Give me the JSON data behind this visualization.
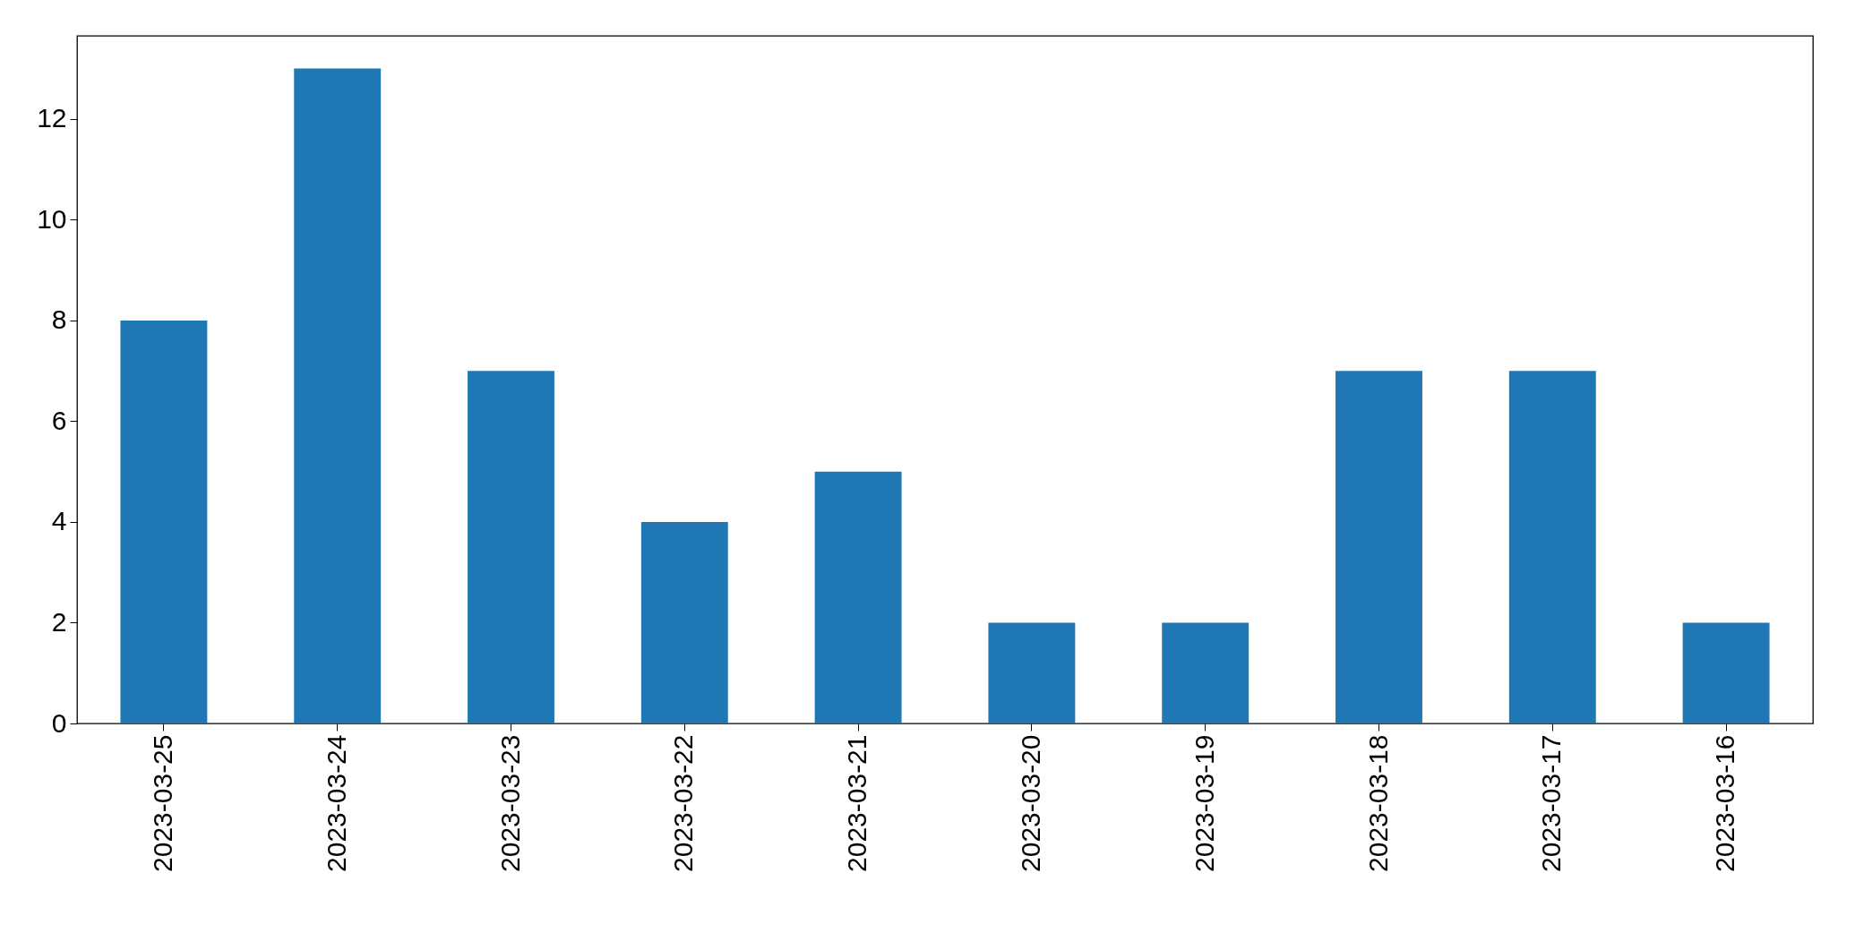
{
  "chart_data": {
    "type": "bar",
    "categories": [
      "2023-03-25",
      "2023-03-24",
      "2023-03-23",
      "2023-03-22",
      "2023-03-21",
      "2023-03-20",
      "2023-03-19",
      "2023-03-18",
      "2023-03-17",
      "2023-03-16"
    ],
    "values": [
      8,
      13,
      7,
      4,
      5,
      2,
      2,
      7,
      7,
      2
    ],
    "color": "#1f77b4",
    "ylim": [
      0,
      13.65
    ],
    "yticks": [
      0,
      2,
      4,
      6,
      8,
      10,
      12
    ],
    "grid": false
  }
}
